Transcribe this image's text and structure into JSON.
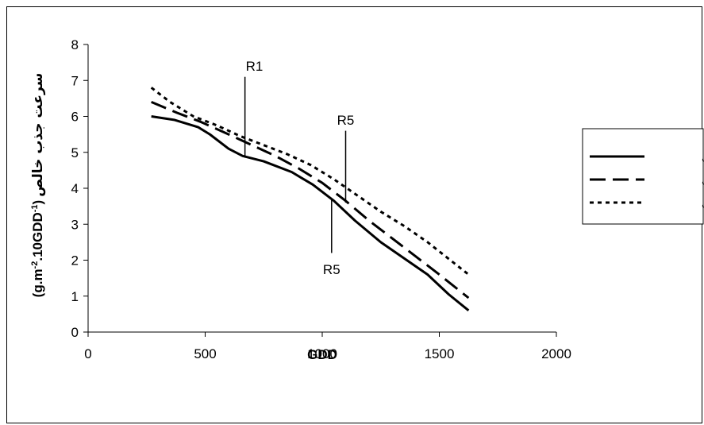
{
  "chart_data": {
    "type": "line",
    "title": "",
    "xlabel": "GDD",
    "ylabel": "سرعت جذب خالص (g.m-2.10GDD-1)",
    "ylabel_parts": {
      "rtl": "سرعت جذب خالص",
      "paren_open": "(g.m",
      "sup1": "-2",
      "mid": ".10GDD",
      "sup2": "-1",
      "paren_close": ")"
    },
    "xlim": [
      0,
      2000
    ],
    "ylim": [
      0,
      8
    ],
    "xticks": [
      0,
      500,
      1000,
      1500,
      2000
    ],
    "yticks": [
      0,
      1,
      2,
      3,
      4,
      5,
      6,
      7,
      8
    ],
    "grid": false,
    "legend_position": "right",
    "series": [
      {
        "name": "بهاتی",
        "style": "solid",
        "color": "#000000",
        "x": [
          270,
          370,
          470,
          520,
          600,
          660,
          750,
          870,
          960,
          1050,
          1140,
          1250,
          1350,
          1450,
          1540,
          1625
        ],
        "y": [
          6.0,
          5.9,
          5.7,
          5.5,
          5.1,
          4.9,
          4.75,
          4.45,
          4.1,
          3.65,
          3.1,
          2.5,
          2.05,
          1.6,
          1.05,
          0.6
        ]
      },
      {
        "name": "پسەدی",
        "style": "dashed",
        "color": "#000000",
        "x": [
          270,
          380,
          480,
          600,
          700,
          800,
          900,
          1000,
          1100,
          1200,
          1300,
          1400,
          1500,
          1625
        ],
        "y": [
          6.4,
          6.1,
          5.85,
          5.5,
          5.2,
          4.9,
          4.55,
          4.15,
          3.65,
          3.1,
          2.6,
          2.1,
          1.6,
          0.95
        ]
      },
      {
        "name": "وزمایلی",
        "style": "dotted",
        "color": "#000000",
        "x": [
          270,
          350,
          450,
          550,
          650,
          750,
          850,
          950,
          1050,
          1150,
          1250,
          1350,
          1450,
          1625
        ],
        "y": [
          6.8,
          6.4,
          6.0,
          5.75,
          5.45,
          5.2,
          4.95,
          4.65,
          4.25,
          3.8,
          3.35,
          2.95,
          2.5,
          1.6
        ]
      }
    ],
    "annotations": [
      {
        "text": "R1",
        "line_x": 670,
        "line_y": [
          4.85,
          7.1
        ],
        "label_x": 710,
        "label_y": 7.4
      },
      {
        "text": "R5",
        "line_x": 1100,
        "line_y": [
          3.6,
          5.6
        ],
        "label_x": 1100,
        "label_y": 5.9
      },
      {
        "text": "R5",
        "line_x": 1040,
        "line_y": [
          2.2,
          3.7
        ],
        "label_x": 1040,
        "label_y": 1.75
      }
    ]
  }
}
